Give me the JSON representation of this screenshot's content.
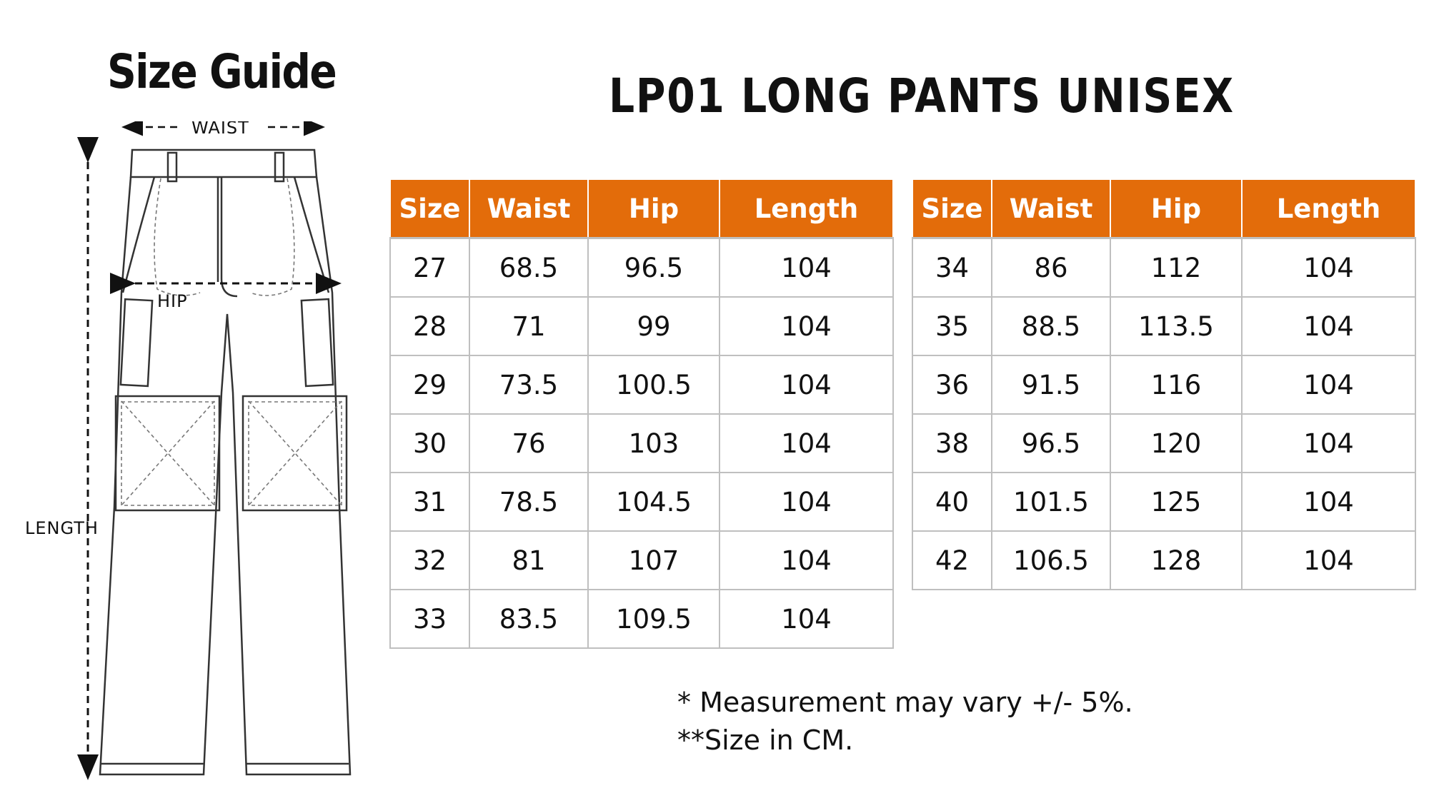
{
  "guide_title": "Size Guide",
  "product_title": "LP01 LONG PANTS UNISEX",
  "diagram": {
    "waist_label": "WAIST",
    "hip_label": "HIP",
    "length_label": "LENGTH"
  },
  "colors": {
    "header_bg": "#e36c0a",
    "header_text": "#ffffff",
    "grid": "#bfbfbf"
  },
  "table_left": {
    "headers": [
      "Size",
      "Waist",
      "Hip",
      "Length"
    ],
    "rows": [
      [
        "27",
        "68.5",
        "96.5",
        "104"
      ],
      [
        "28",
        "71",
        "99",
        "104"
      ],
      [
        "29",
        "73.5",
        "100.5",
        "104"
      ],
      [
        "30",
        "76",
        "103",
        "104"
      ],
      [
        "31",
        "78.5",
        "104.5",
        "104"
      ],
      [
        "32",
        "81",
        "107",
        "104"
      ],
      [
        "33",
        "83.5",
        "109.5",
        "104"
      ]
    ]
  },
  "table_right": {
    "headers": [
      "Size",
      "Waist",
      "Hip",
      "Length"
    ],
    "rows": [
      [
        "34",
        "86",
        "112",
        "104"
      ],
      [
        "35",
        "88.5",
        "113.5",
        "104"
      ],
      [
        "36",
        "91.5",
        "116",
        "104"
      ],
      [
        "38",
        "96.5",
        "120",
        "104"
      ],
      [
        "40",
        "101.5",
        "125",
        "104"
      ],
      [
        "42",
        "106.5",
        "128",
        "104"
      ]
    ]
  },
  "notes": {
    "line1": "* Measurement may vary +/- 5%.",
    "line2": "**Size in CM."
  }
}
